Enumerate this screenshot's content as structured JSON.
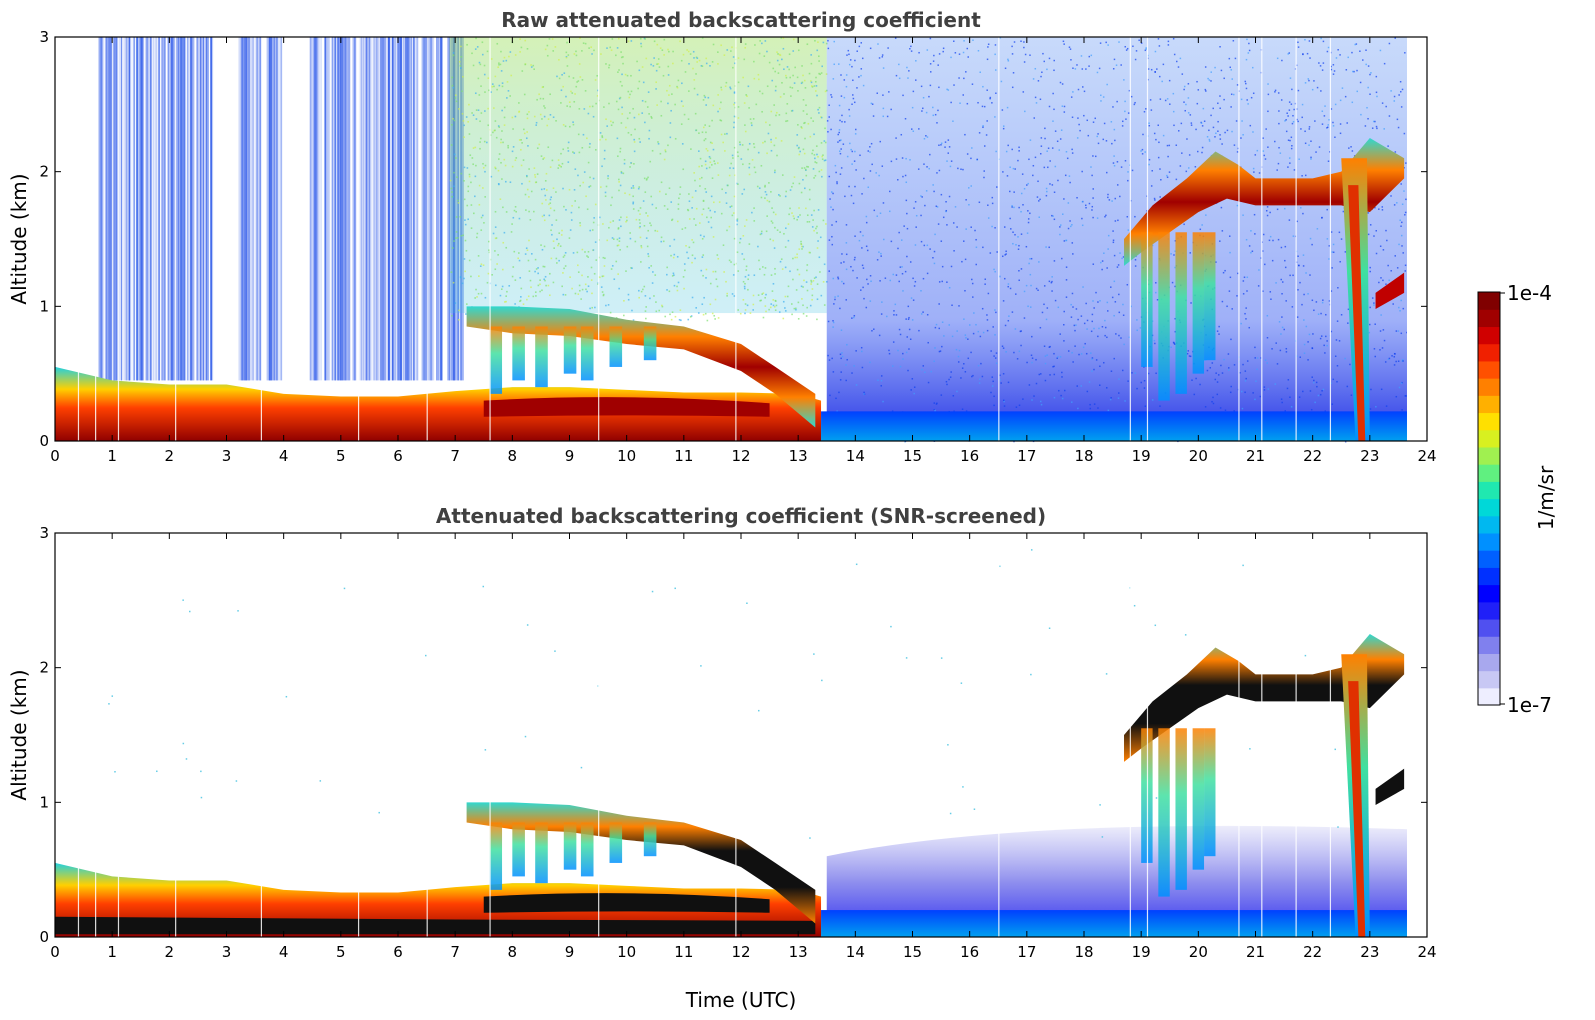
{
  "chart_data": [
    {
      "type": "heatmap",
      "title": "Raw attenuated backscattering coefficient",
      "xlabel": "",
      "ylabel": "Altitude (km)",
      "xlim": [
        0,
        24
      ],
      "ylim": [
        0,
        3
      ],
      "xticks": [
        "0",
        "1",
        "2",
        "3",
        "4",
        "5",
        "6",
        "7",
        "8",
        "9",
        "10",
        "11",
        "12",
        "13",
        "14",
        "15",
        "16",
        "17",
        "18",
        "19",
        "20",
        "21",
        "22",
        "23",
        "24"
      ],
      "yticks": [
        "0",
        "1",
        "2",
        "3"
      ],
      "data_end_hour": 23.65,
      "features": [
        {
          "name": "boundary layer aerosol",
          "time_range": [
            0,
            13.4
          ],
          "altitude_range_km": [
            0,
            0.4
          ],
          "level": "high"
        },
        {
          "name": "cloud layer",
          "time_range": [
            7.3,
            13.3
          ],
          "altitude_range_km": [
            0.3,
            1.0
          ],
          "level": "high"
        },
        {
          "name": "cloud layer",
          "time_range": [
            18.7,
            23.6
          ],
          "altitude_range_km": [
            1.3,
            2.2
          ],
          "level": "high"
        },
        {
          "name": "precipitation",
          "time_range": [
            22.5,
            23.0
          ],
          "altitude_range_km": [
            0,
            2.0
          ],
          "level": "high"
        },
        {
          "name": "background noise",
          "time_range": [
            0,
            23.65
          ],
          "altitude_range_km": [
            0,
            3.0
          ],
          "level": "low"
        }
      ]
    },
    {
      "type": "heatmap",
      "title": "Attenuated backscattering coefficient (SNR-screened)",
      "xlabel": "Time (UTC)",
      "ylabel": "Altitude (km)",
      "xlim": [
        0,
        24
      ],
      "ylim": [
        0,
        3
      ],
      "xticks": [
        "0",
        "1",
        "2",
        "3",
        "4",
        "5",
        "6",
        "7",
        "8",
        "9",
        "10",
        "11",
        "12",
        "13",
        "14",
        "15",
        "16",
        "17",
        "18",
        "19",
        "20",
        "21",
        "22",
        "23",
        "24"
      ],
      "yticks": [
        "0",
        "1",
        "2",
        "3"
      ],
      "data_end_hour": 23.65,
      "features": [
        {
          "name": "boundary layer aerosol",
          "time_range": [
            0,
            13.4
          ],
          "altitude_range_km": [
            0,
            0.4
          ],
          "level": "saturated"
        },
        {
          "name": "cloud layer",
          "time_range": [
            7.3,
            13.3
          ],
          "altitude_range_km": [
            0.3,
            1.0
          ],
          "level": "saturated"
        },
        {
          "name": "cloud layer",
          "time_range": [
            18.7,
            23.6
          ],
          "altitude_range_km": [
            1.3,
            2.2
          ],
          "level": "saturated"
        },
        {
          "name": "low-signal region",
          "time_range": [
            13.5,
            23.65
          ],
          "altitude_range_km": [
            0,
            0.85
          ],
          "level": "low"
        }
      ]
    }
  ],
  "colorbar": {
    "min_label": "1e-7",
    "max_label": "1e-4",
    "unit_label": "1/m/sr",
    "colors": [
      "#eeeeff",
      "#c8c8f4",
      "#a8a8ee",
      "#8080ee",
      "#5050f0",
      "#2020f8",
      "#0000ff",
      "#0030ff",
      "#0060ff",
      "#0090ff",
      "#00b8f0",
      "#00d8d8",
      "#20e8b0",
      "#60f080",
      "#a0f050",
      "#d8f020",
      "#ffe000",
      "#ffb000",
      "#ff8000",
      "#ff5000",
      "#f02000",
      "#d00000",
      "#a00000",
      "#800000"
    ]
  }
}
